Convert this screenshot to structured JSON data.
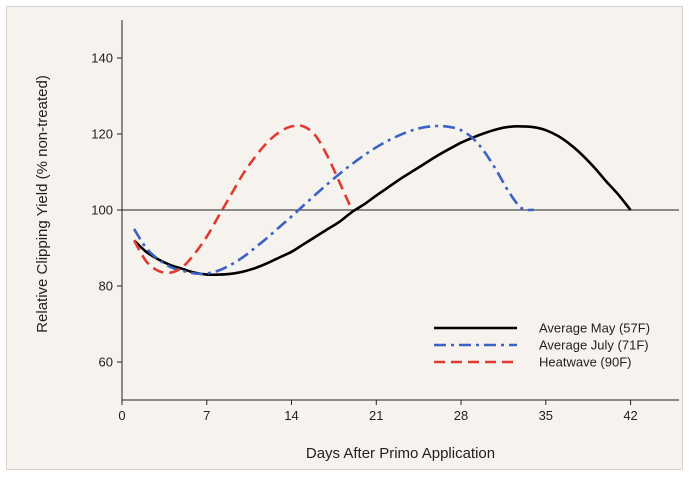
{
  "chart_data": {
    "type": "line",
    "title": "",
    "xlabel": "Days After Primo Application",
    "ylabel": "Relative Clipping Yield (% non-treated)",
    "xlim": [
      0,
      46
    ],
    "ylim": [
      50,
      150
    ],
    "x_ticks": [
      0,
      7,
      14,
      21,
      28,
      35,
      42
    ],
    "y_ticks": [
      60,
      80,
      100,
      120,
      140
    ],
    "reference_line": 100,
    "grid": false,
    "legend_position": "bottom-right",
    "series": [
      {
        "name": "Average May (57F)",
        "color": "#000000",
        "style": "solid",
        "x": [
          1,
          2,
          3,
          4,
          5,
          6,
          7,
          8,
          9,
          10,
          11,
          12,
          13,
          14,
          15,
          16,
          17,
          18,
          19,
          20,
          21,
          22,
          23,
          24,
          25,
          26,
          27,
          28,
          29,
          30,
          31,
          32,
          33,
          34,
          35,
          36,
          37,
          38,
          39,
          40,
          41,
          42
        ],
        "y": [
          92,
          89,
          87,
          85.5,
          84.5,
          83.5,
          83,
          83,
          83.2,
          83.8,
          84.7,
          86,
          87.5,
          89,
          91,
          93,
          95,
          97,
          99.5,
          101.5,
          103.8,
          106,
          108.2,
          110.2,
          112.2,
          114.2,
          116,
          117.7,
          119.1,
          120.3,
          121.3,
          121.9,
          122,
          121.8,
          121,
          119.5,
          117.3,
          114.5,
          111.2,
          107.5,
          104,
          100
        ]
      },
      {
        "name": "Average July (71F)",
        "color": "#3b62c4",
        "style": "dashdot",
        "x": [
          1,
          2,
          3,
          4,
          5,
          6,
          7,
          8,
          9,
          10,
          11,
          12,
          13,
          14,
          15,
          16,
          17,
          18,
          19,
          20,
          21,
          22,
          23,
          24,
          25,
          26,
          27,
          28,
          29,
          30,
          31,
          32,
          33,
          34
        ],
        "y": [
          95,
          90,
          87,
          85,
          84,
          83.3,
          83.3,
          84.1,
          85.6,
          87.6,
          90.1,
          92.7,
          95.5,
          98.3,
          101.2,
          104.1,
          106.9,
          109.6,
          112.1,
          114.4,
          116.5,
          118.3,
          119.8,
          121,
          121.8,
          122.1,
          121.9,
          121,
          118.8,
          115,
          110,
          104.5,
          100.5,
          100
        ]
      },
      {
        "name": "Heatwave (90F)",
        "color": "#e03a31",
        "style": "dashed",
        "x": [
          1,
          2,
          3,
          4,
          5,
          6,
          7,
          8,
          9,
          10,
          11,
          12,
          13,
          14,
          15,
          16,
          17,
          18,
          19
        ],
        "y": [
          92,
          86.5,
          84,
          83.5,
          85,
          88.5,
          93,
          98.5,
          104,
          109.5,
          114,
          117.8,
          120.5,
          122,
          122,
          119.5,
          114,
          107,
          100
        ]
      }
    ]
  }
}
